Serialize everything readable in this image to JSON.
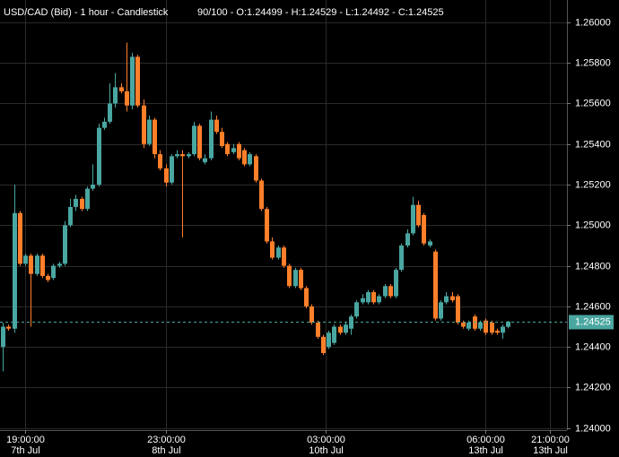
{
  "chart_data": {
    "type": "candlestick",
    "title": "USD/CAD (Bid) - 1 hour - Candlestick",
    "subtitle": "90/100 - O:1.24499 - H:1.24529 - L:1.24492 - C:1.24525",
    "up_color": "#4aa6a0",
    "down_color": "#ff7f2a",
    "grid": true,
    "last_price_line": true,
    "xlim": [
      -0.5,
      100.5
    ],
    "xticks": [
      {
        "value": 4,
        "label": "19:00:00",
        "date": "7th Jul"
      },
      {
        "value": 29,
        "label": "23:00:00",
        "date": "8th Jul"
      },
      {
        "value": 57.5,
        "label": "03:00:00",
        "date": "10th Jul"
      },
      {
        "value": 86,
        "label": "06:00:00",
        "date": "13th Jul"
      },
      {
        "value": 97.5,
        "label": "21:00:00",
        "date": "13th Jul"
      }
    ],
    "ylim": [
      1.2399,
      1.2611
    ],
    "yticks": [
      {
        "value": 1.24,
        "label": "1.24000"
      },
      {
        "value": 1.242,
        "label": "1.24200"
      },
      {
        "value": 1.244,
        "label": "1.24400"
      },
      {
        "value": 1.246,
        "label": "1.24600"
      },
      {
        "value": 1.248,
        "label": "1.24800"
      },
      {
        "value": 1.25,
        "label": "1.25000"
      },
      {
        "value": 1.252,
        "label": "1.25200"
      },
      {
        "value": 1.254,
        "label": "1.25400"
      },
      {
        "value": 1.256,
        "label": "1.25600"
      },
      {
        "value": 1.258,
        "label": "1.25800"
      },
      {
        "value": 1.26,
        "label": "1.26000"
      }
    ],
    "open": [
      1.244,
      1.245,
      1.2449,
      1.2506,
      1.2481,
      1.2485,
      1.2476,
      1.2485,
      1.2475,
      1.2474,
      1.248,
      1.2481,
      1.25,
      1.2509,
      1.2513,
      1.2508,
      1.2518,
      1.252,
      1.2548,
      1.2551,
      1.256,
      1.2568,
      1.2566,
      1.2559,
      1.2583,
      1.2559,
      1.254,
      1.2552,
      1.2535,
      1.2528,
      1.2521,
      1.2534,
      1.2535,
      1.2534,
      1.2535,
      1.2549,
      1.2531,
      1.2533,
      1.2552,
      1.2546,
      1.254,
      1.2536,
      1.254,
      1.2537,
      1.253,
      1.2534,
      1.2522,
      1.2508,
      1.2492,
      1.2484,
      1.2489,
      1.248,
      1.247,
      1.2478,
      1.2469,
      1.246,
      1.2452,
      1.2445,
      1.244,
      1.2442,
      1.245,
      1.2447,
      1.2449,
      1.2455,
      1.2462,
      1.2462,
      1.2467,
      1.2462,
      1.2465,
      1.247,
      1.2465,
      1.2478,
      1.249,
      1.2496,
      1.251,
      1.2505,
      1.249,
      1.2487,
      1.2454,
      1.2462,
      1.2465,
      1.2465,
      1.2452,
      1.2449,
      1.2455,
      1.2449,
      1.2453,
      1.2452,
      1.2448,
      1.2447,
      1.24499
    ],
    "high": [
      1.2452,
      1.2451,
      1.252,
      1.2507,
      1.2486,
      1.2486,
      1.2486,
      1.2486,
      1.2476,
      1.2481,
      1.2482,
      1.2502,
      1.2513,
      1.2515,
      1.2514,
      1.2519,
      1.253,
      1.255,
      1.2553,
      1.257,
      1.2575,
      1.257,
      1.259,
      1.2585,
      1.2584,
      1.2562,
      1.2554,
      1.2553,
      1.2537,
      1.253,
      1.2535,
      1.2537,
      1.2537,
      1.2536,
      1.2551,
      1.255,
      1.2535,
      1.2556,
      1.2554,
      1.2548,
      1.2541,
      1.254,
      1.2541,
      1.2538,
      1.2536,
      1.2535,
      1.2523,
      1.2509,
      1.2494,
      1.249,
      1.249,
      1.2481,
      1.2479,
      1.2479,
      1.247,
      1.2461,
      1.2453,
      1.2446,
      1.2448,
      1.2451,
      1.2451,
      1.2452,
      1.2456,
      1.2463,
      1.2466,
      1.2468,
      1.2468,
      1.2466,
      1.2471,
      1.2471,
      1.2479,
      1.2491,
      1.2498,
      1.2514,
      1.2512,
      1.2506,
      1.2493,
      1.2488,
      1.2463,
      1.2467,
      1.2467,
      1.2466,
      1.2453,
      1.2453,
      1.2456,
      1.2453,
      1.2454,
      1.2453,
      1.2449,
      1.2451,
      1.24529
    ],
    "low": [
      1.2428,
      1.2448,
      1.2447,
      1.248,
      1.248,
      1.245,
      1.2475,
      1.2474,
      1.2472,
      1.2473,
      1.2479,
      1.248,
      1.2499,
      1.2507,
      1.2507,
      1.2507,
      1.2517,
      1.2519,
      1.2547,
      1.255,
      1.2558,
      1.2565,
      1.2556,
      1.2557,
      1.2558,
      1.2538,
      1.2539,
      1.2533,
      1.2527,
      1.2519,
      1.252,
      1.2533,
      1.2494,
      1.2533,
      1.2534,
      1.2532,
      1.253,
      1.2532,
      1.2545,
      1.2538,
      1.2534,
      1.2535,
      1.2532,
      1.2529,
      1.2529,
      1.2521,
      1.2507,
      1.2491,
      1.2483,
      1.2483,
      1.2479,
      1.2469,
      1.2469,
      1.2468,
      1.2459,
      1.2451,
      1.2444,
      1.2436,
      1.2439,
      1.2441,
      1.2446,
      1.2446,
      1.2446,
      1.2454,
      1.2461,
      1.2461,
      1.2461,
      1.2461,
      1.2464,
      1.2464,
      1.2464,
      1.2477,
      1.2489,
      1.2495,
      1.2499,
      1.249,
      1.2489,
      1.2453,
      1.2453,
      1.2461,
      1.2462,
      1.2451,
      1.2449,
      1.2448,
      1.2448,
      1.2448,
      1.2446,
      1.2446,
      1.2446,
      1.2444,
      1.24492
    ],
    "close": [
      1.245,
      1.2449,
      1.2506,
      1.2481,
      1.2485,
      1.2476,
      1.2485,
      1.2475,
      1.2473,
      1.248,
      1.2481,
      1.25,
      1.2509,
      1.2513,
      1.2508,
      1.2518,
      1.252,
      1.2548,
      1.2551,
      1.256,
      1.2568,
      1.2566,
      1.2559,
      1.2583,
      1.2559,
      1.254,
      1.2552,
      1.2535,
      1.2528,
      1.2521,
      1.2534,
      1.2535,
      1.2534,
      1.2535,
      1.2549,
      1.2533,
      1.2533,
      1.2552,
      1.2546,
      1.2539,
      1.2535,
      1.2538,
      1.2533,
      1.253,
      1.2535,
      1.2522,
      1.2508,
      1.2492,
      1.2484,
      1.2489,
      1.248,
      1.247,
      1.2478,
      1.2469,
      1.246,
      1.2452,
      1.2445,
      1.2437,
      1.2447,
      1.245,
      1.2447,
      1.2451,
      1.2455,
      1.2462,
      1.2464,
      1.2467,
      1.2462,
      1.2465,
      1.247,
      1.2465,
      1.2478,
      1.249,
      1.2496,
      1.251,
      1.25,
      1.2491,
      1.2492,
      1.2454,
      1.2462,
      1.2465,
      1.2463,
      1.2452,
      1.245,
      1.2452,
      1.2449,
      1.2452,
      1.2447,
      1.2447,
      1.2447,
      1.245,
      1.24525
    ]
  }
}
